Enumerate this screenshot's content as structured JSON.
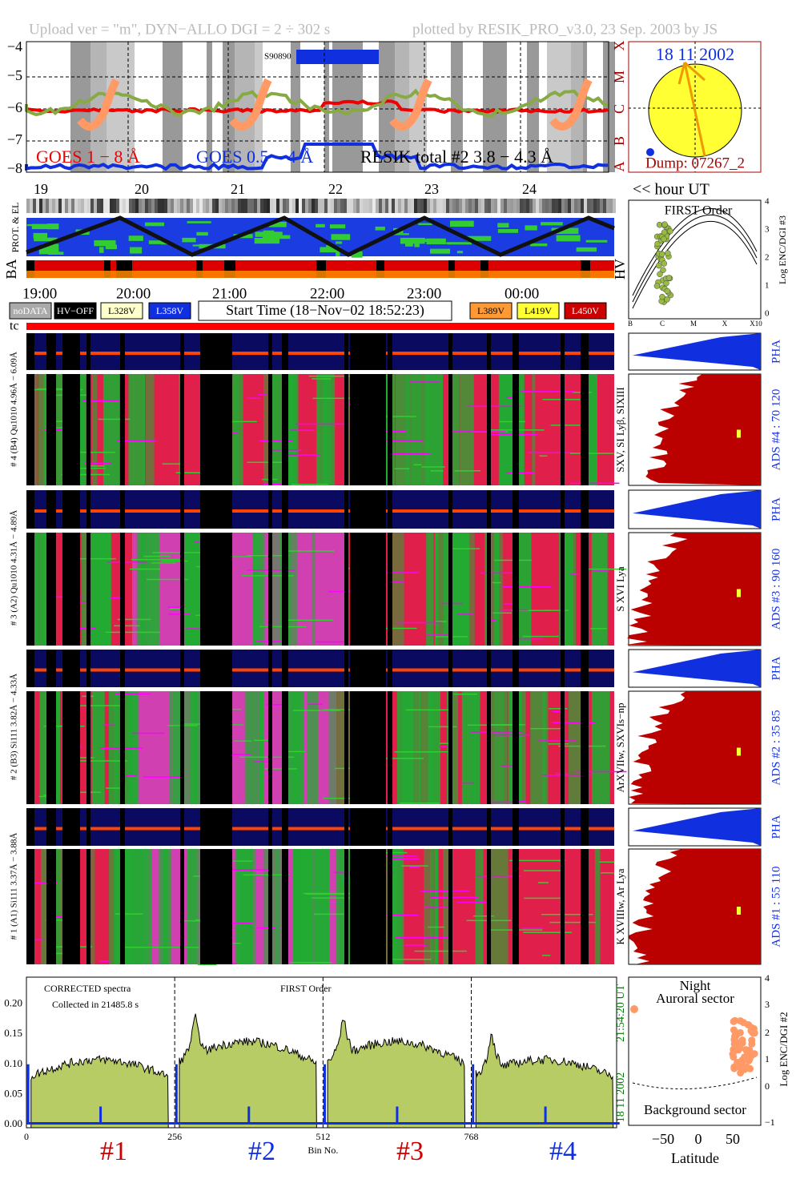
{
  "header": {
    "left": "Upload ver = \"m\", DYN−ALLO DGI =   2 ÷ 302 s",
    "right": "plotted by RESIK_PRO_v3.0, 23 Sep. 2003 by JS"
  },
  "goes": {
    "yticks": [
      "−4",
      "−5",
      "−6",
      "−7",
      "−8"
    ],
    "classes": [
      "X",
      "M",
      "C",
      "B",
      "A"
    ],
    "marker": "S90890",
    "legend": [
      "GOES 1 − 8 Å",
      "GOES 0.5 − 4 Å",
      "RESIK total #2  3.8 − 4.3 Å"
    ]
  },
  "sun": {
    "date": "18 11 2002",
    "dump": "Dump: 07267_2"
  },
  "days": {
    "labels": [
      "19",
      "20",
      "21",
      "22",
      "23",
      "24"
    ],
    "unit": "<< hour UT"
  },
  "strips": {
    "prot": "PROT. & EL",
    "ba": "BA",
    "hv": "HV"
  },
  "hours": [
    "19:00",
    "20:00",
    "21:00",
    "22:00",
    "23:00",
    "00:00"
  ],
  "legend_boxes": {
    "left": [
      "noDATA",
      "HV−OFF",
      "L328V",
      "L358V"
    ],
    "start": "Start Time (18−Nov−02 18:52:23)",
    "right": [
      "L389V",
      "L419V",
      "L450V"
    ]
  },
  "tc": "tc",
  "first_order": {
    "title": "FIRST Order",
    "yticks": [
      "4",
      "3",
      "2",
      "1",
      "0"
    ],
    "ylabel": "Log ENC/DGI #3",
    "xlabels": [
      "B",
      "C",
      "M",
      "X",
      "X10"
    ]
  },
  "channels": [
    {
      "label": "# 4 (B4) Qu1010 4.96Å − 6.09Å",
      "pha": "PHA",
      "ads": "ADS #4 :   70 120",
      "lines": "SXV, SI Lyβ, SIXIII"
    },
    {
      "label": "# 3 (A2) Qu1010 4.31Å − 4.89Å",
      "pha": "PHA",
      "ads": "ADS #3 :   90 160",
      "lines": "S XVI Lya"
    },
    {
      "label": "# 2 (B3) Si111  3.82Å − 4.33Å",
      "pha": "PHA",
      "ads": "ADS #2 :   35  85",
      "lines": "ArXVIIw, SXVIs−np"
    },
    {
      "label": "# 1 (A1) Si111  3.37Å − 3.88Å",
      "pha": "PHA",
      "ads": "ADS #1 :   55 110",
      "lines": "K XVIIIw, Ar Lya"
    }
  ],
  "spectrum": {
    "note1": "CORRECTED spectra",
    "note2": "Collected in 21485.8 s",
    "title": "FIRST Order",
    "yticks": [
      "0.00",
      "0.05",
      "0.10",
      "0.15",
      "0.20"
    ],
    "xticks": [
      "0",
      "256",
      "512",
      "768"
    ],
    "xlabel": "Bin No.",
    "time": "21:54:20 UT",
    "date": "18 11 2002",
    "groups": [
      "#1",
      "#2",
      "#3",
      "#4"
    ]
  },
  "latitude": {
    "night": "Night",
    "auroral": "Auroral sector",
    "background": "Background sector",
    "xlabel": "Latitude",
    "xticks": [
      "−50",
      "0",
      "50"
    ],
    "yticks": [
      "4",
      "3",
      "2",
      "1",
      "0",
      "−1"
    ],
    "ylabel": "Log ENC/DGI #2"
  }
}
